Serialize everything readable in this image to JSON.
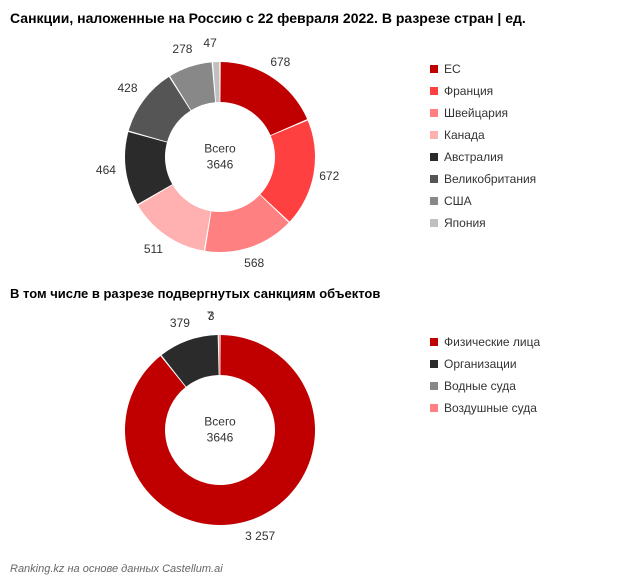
{
  "title": "Санкции, наложенные на Россию с 22 февраля 2022. В разрезе стран | ед.",
  "subtitle": "В том числе в разрезе подвергнутых санкциям объектов",
  "source": "Ranking.kz на основе данных Castellum.ai",
  "center_label": "Всего",
  "chart1": {
    "type": "donut",
    "total": 3646,
    "inner_radius": 55,
    "outer_radius": 95,
    "background_color": "#ffffff",
    "slices": [
      {
        "label": "ЕС",
        "value": 678,
        "color": "#c00000"
      },
      {
        "label": "Франция",
        "value": 672,
        "color": "#ff4040"
      },
      {
        "label": "Швейцария",
        "value": 568,
        "color": "#ff8080"
      },
      {
        "label": "Канада",
        "value": 511,
        "color": "#ffb0b0"
      },
      {
        "label": "Австралия",
        "value": 464,
        "color": "#2b2b2b"
      },
      {
        "label": "Великобритания",
        "value": 428,
        "color": "#555555"
      },
      {
        "label": "США",
        "value": 278,
        "color": "#888888"
      },
      {
        "label": "Япония",
        "value": 47,
        "color": "#c0c0c0"
      }
    ]
  },
  "chart2": {
    "type": "donut",
    "total": 3646,
    "inner_radius": 55,
    "outer_radius": 95,
    "background_color": "#ffffff",
    "slices": [
      {
        "label": "Физические лица",
        "value": 3257,
        "color": "#c00000",
        "display_value": "3 257"
      },
      {
        "label": "Организации",
        "value": 379,
        "color": "#2b2b2b"
      },
      {
        "label": "Водные суда",
        "value": 7,
        "color": "#888888"
      },
      {
        "label": "Воздушные суда",
        "value": 3,
        "color": "#ff8080"
      }
    ]
  }
}
